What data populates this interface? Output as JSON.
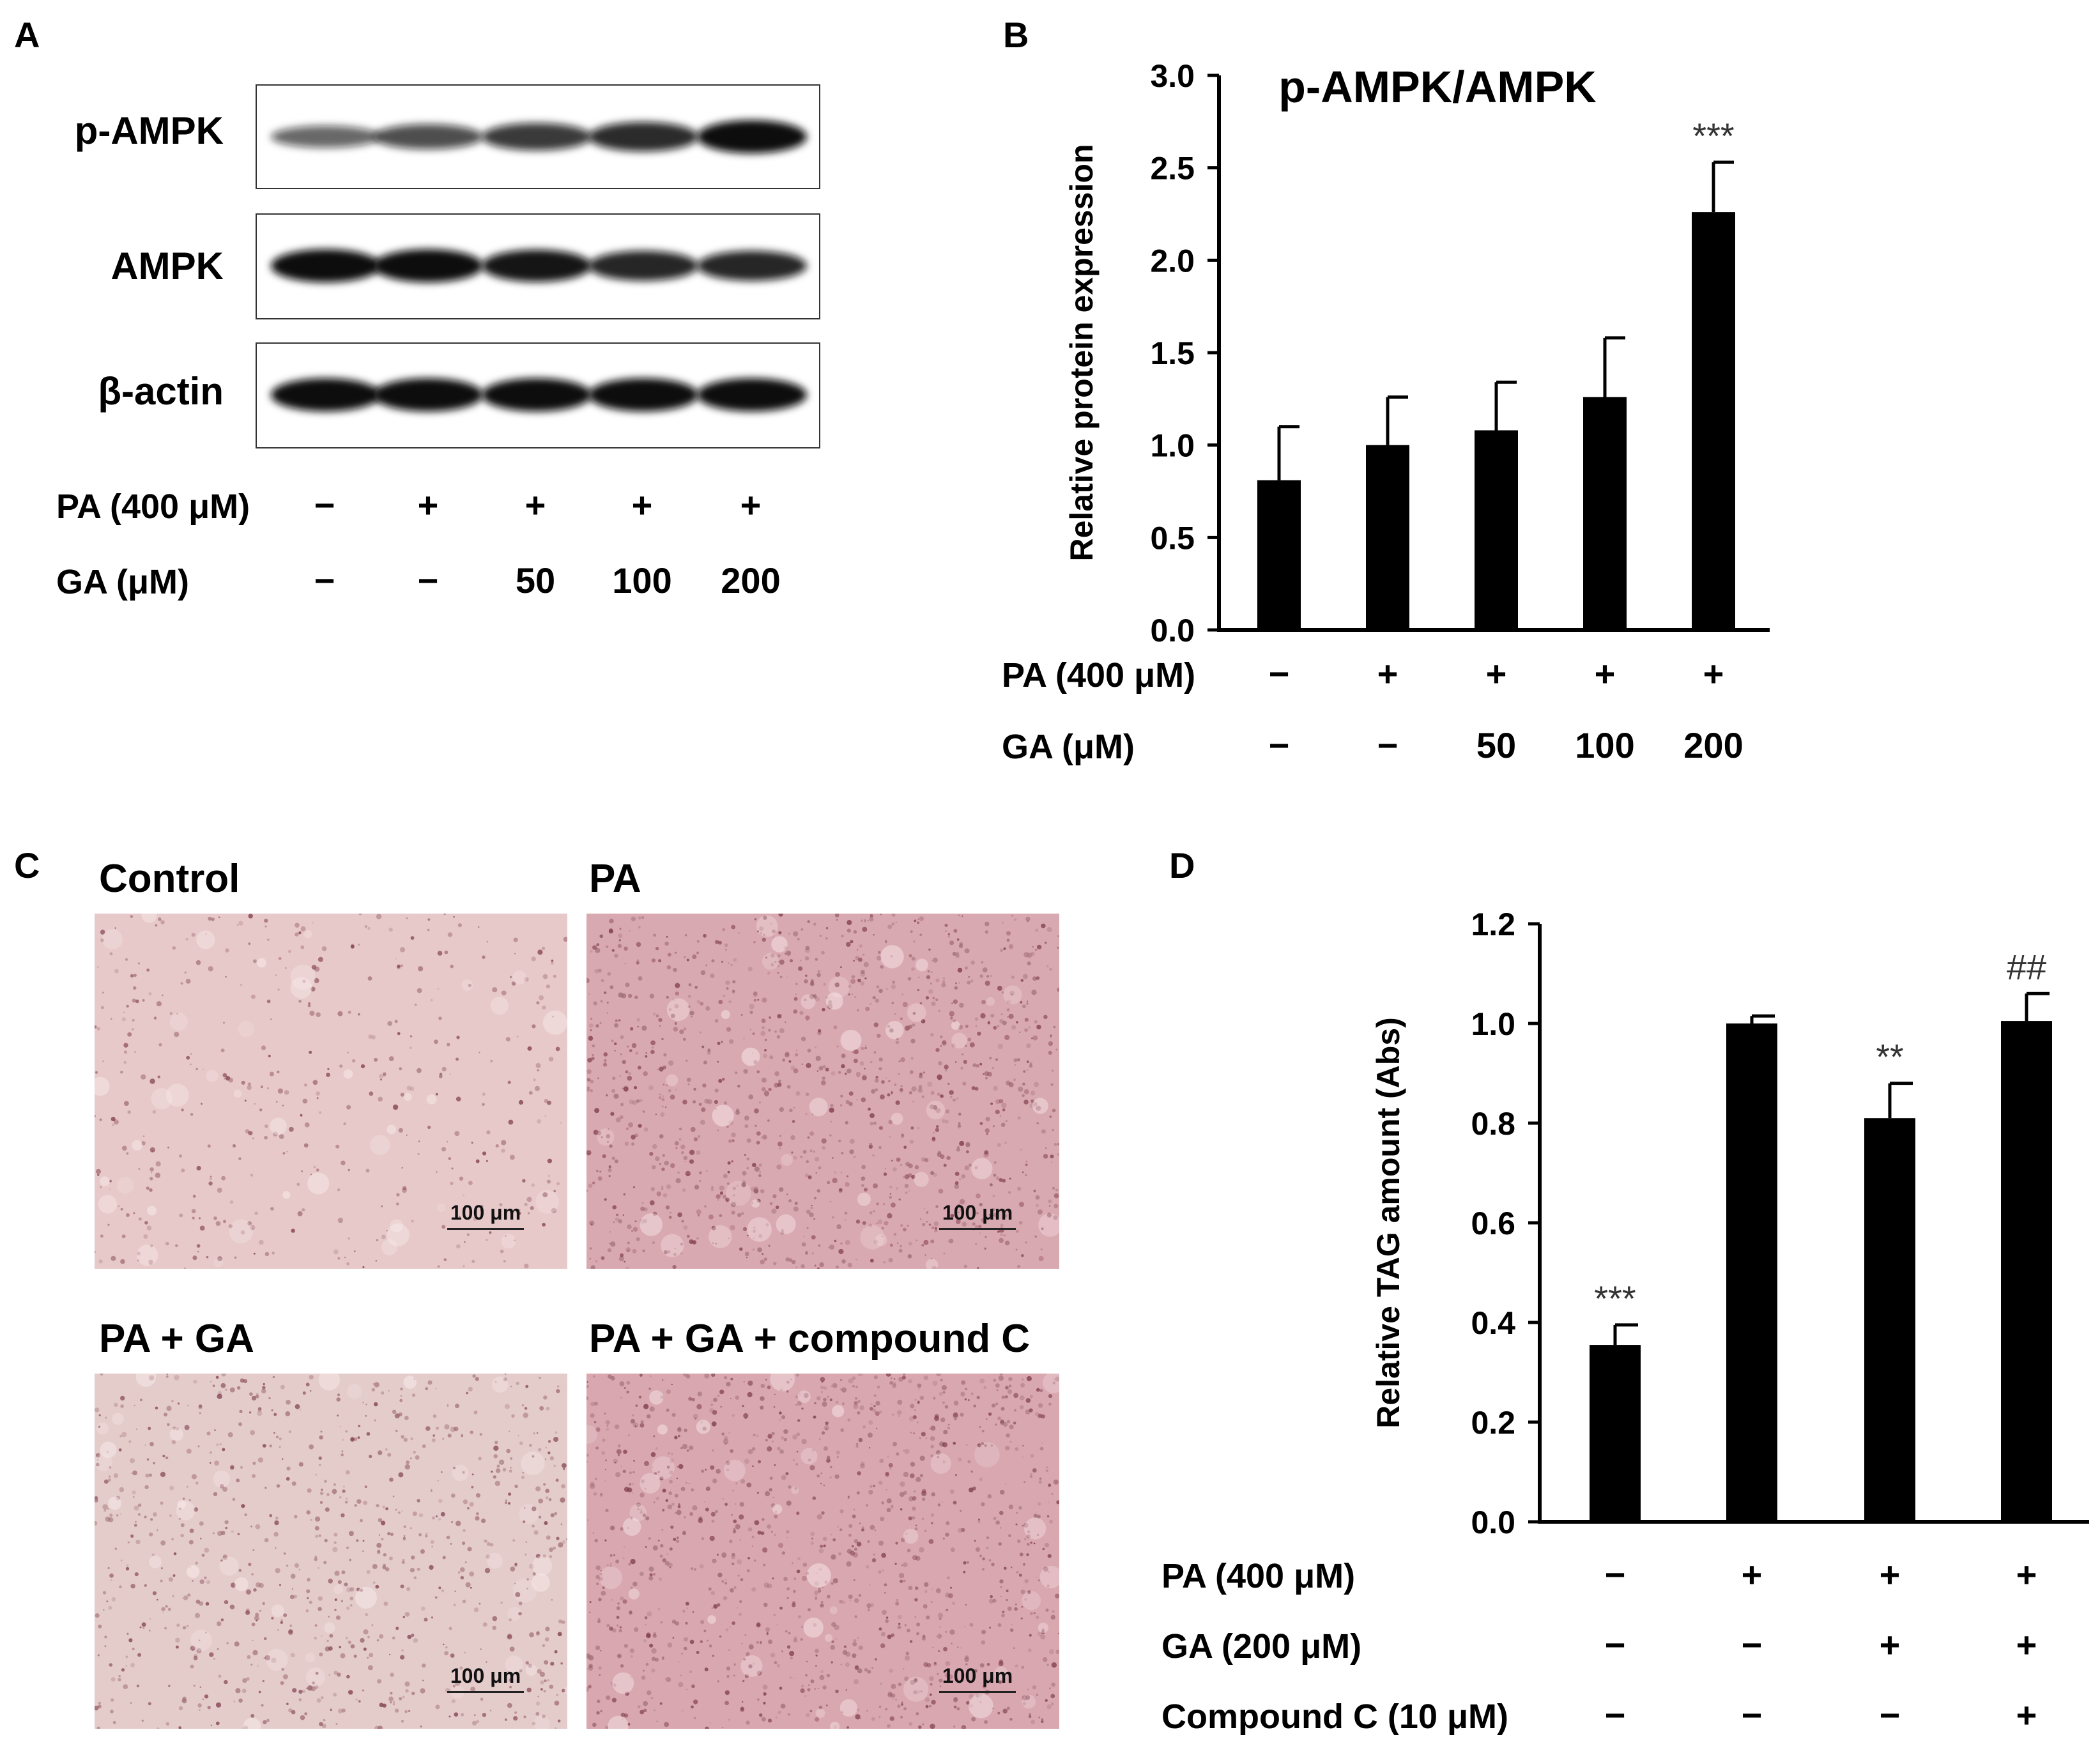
{
  "panels": {
    "A": {
      "letter": "A",
      "blots": [
        {
          "label": "p-AMPK",
          "intensity": [
            0.45,
            0.6,
            0.72,
            0.82,
            1.0
          ]
        },
        {
          "label": "AMPK",
          "intensity": [
            1.0,
            1.0,
            0.95,
            0.85,
            0.85
          ]
        },
        {
          "label": "β-actin",
          "intensity": [
            1.0,
            1.0,
            1.0,
            1.0,
            1.0
          ]
        }
      ],
      "conditions": [
        {
          "label": "PA (400 μM)",
          "marks": [
            "−",
            "+",
            "+",
            "+",
            "+"
          ]
        },
        {
          "label": "GA (μM)",
          "marks": [
            "−",
            "−",
            "50",
            "100",
            "200"
          ]
        }
      ]
    },
    "B": {
      "letter": "B",
      "conditions": [
        {
          "label": "PA (400 μM)",
          "marks": [
            "−",
            "+",
            "+",
            "+",
            "+"
          ]
        },
        {
          "label": "GA (μM)",
          "marks": [
            "−",
            "−",
            "50",
            "100",
            "200"
          ]
        }
      ]
    },
    "C": {
      "letter": "C",
      "images": [
        {
          "title": "Control",
          "scale": "100 μm",
          "tint": "#e7c9c9",
          "density": 0.5
        },
        {
          "title": "PA",
          "scale": "100 μm",
          "tint": "#d9a9b1",
          "density": 1.4
        },
        {
          "title": "PA + GA",
          "scale": "100 μm",
          "tint": "#e4cccb",
          "density": 1.0
        },
        {
          "title": "PA + GA + compound C",
          "scale": "100 μm",
          "tint": "#d8a7b0",
          "density": 1.4
        }
      ]
    },
    "D": {
      "letter": "D",
      "conditions": [
        {
          "label": "PA (400 μM)",
          "marks": [
            "−",
            "+",
            "+",
            "+"
          ]
        },
        {
          "label": "GA (200 μM)",
          "marks": [
            "−",
            "−",
            "+",
            "+"
          ]
        },
        {
          "label": "Compound C (10 μM)",
          "marks": [
            "−",
            "−",
            "−",
            "+"
          ]
        }
      ]
    }
  },
  "chart_data": [
    {
      "type": "bar",
      "title": "p-AMPK/AMPK",
      "ylabel": "Relative protein expression",
      "ylim": [
        0,
        3.0
      ],
      "yticks": [
        0.0,
        0.5,
        1.0,
        1.5,
        2.0,
        2.5,
        3.0
      ],
      "yticklabels": [
        "0.0",
        "0.5",
        "1.0",
        "1.5",
        "2.0",
        "2.5",
        "3.0"
      ],
      "values": [
        0.81,
        1.0,
        1.08,
        1.26,
        2.26
      ],
      "errors": [
        0.29,
        0.26,
        0.26,
        0.32,
        0.27
      ],
      "annotations": [
        "",
        "",
        "",
        "",
        "***"
      ],
      "color": "#000000"
    },
    {
      "type": "bar",
      "ylabel": "Relative TAG amount (Abs)",
      "ylim": [
        0,
        1.2
      ],
      "yticks": [
        0.0,
        0.2,
        0.4,
        0.6,
        0.8,
        1.0,
        1.2
      ],
      "yticklabels": [
        "0.0",
        "0.2",
        "0.4",
        "0.6",
        "0.8",
        "1.0",
        "1.2"
      ],
      "values": [
        0.355,
        1.0,
        0.81,
        1.005
      ],
      "errors": [
        0.04,
        0.015,
        0.07,
        0.055
      ],
      "annotations": [
        "***",
        "",
        "**",
        "##"
      ],
      "color": "#000000"
    }
  ]
}
